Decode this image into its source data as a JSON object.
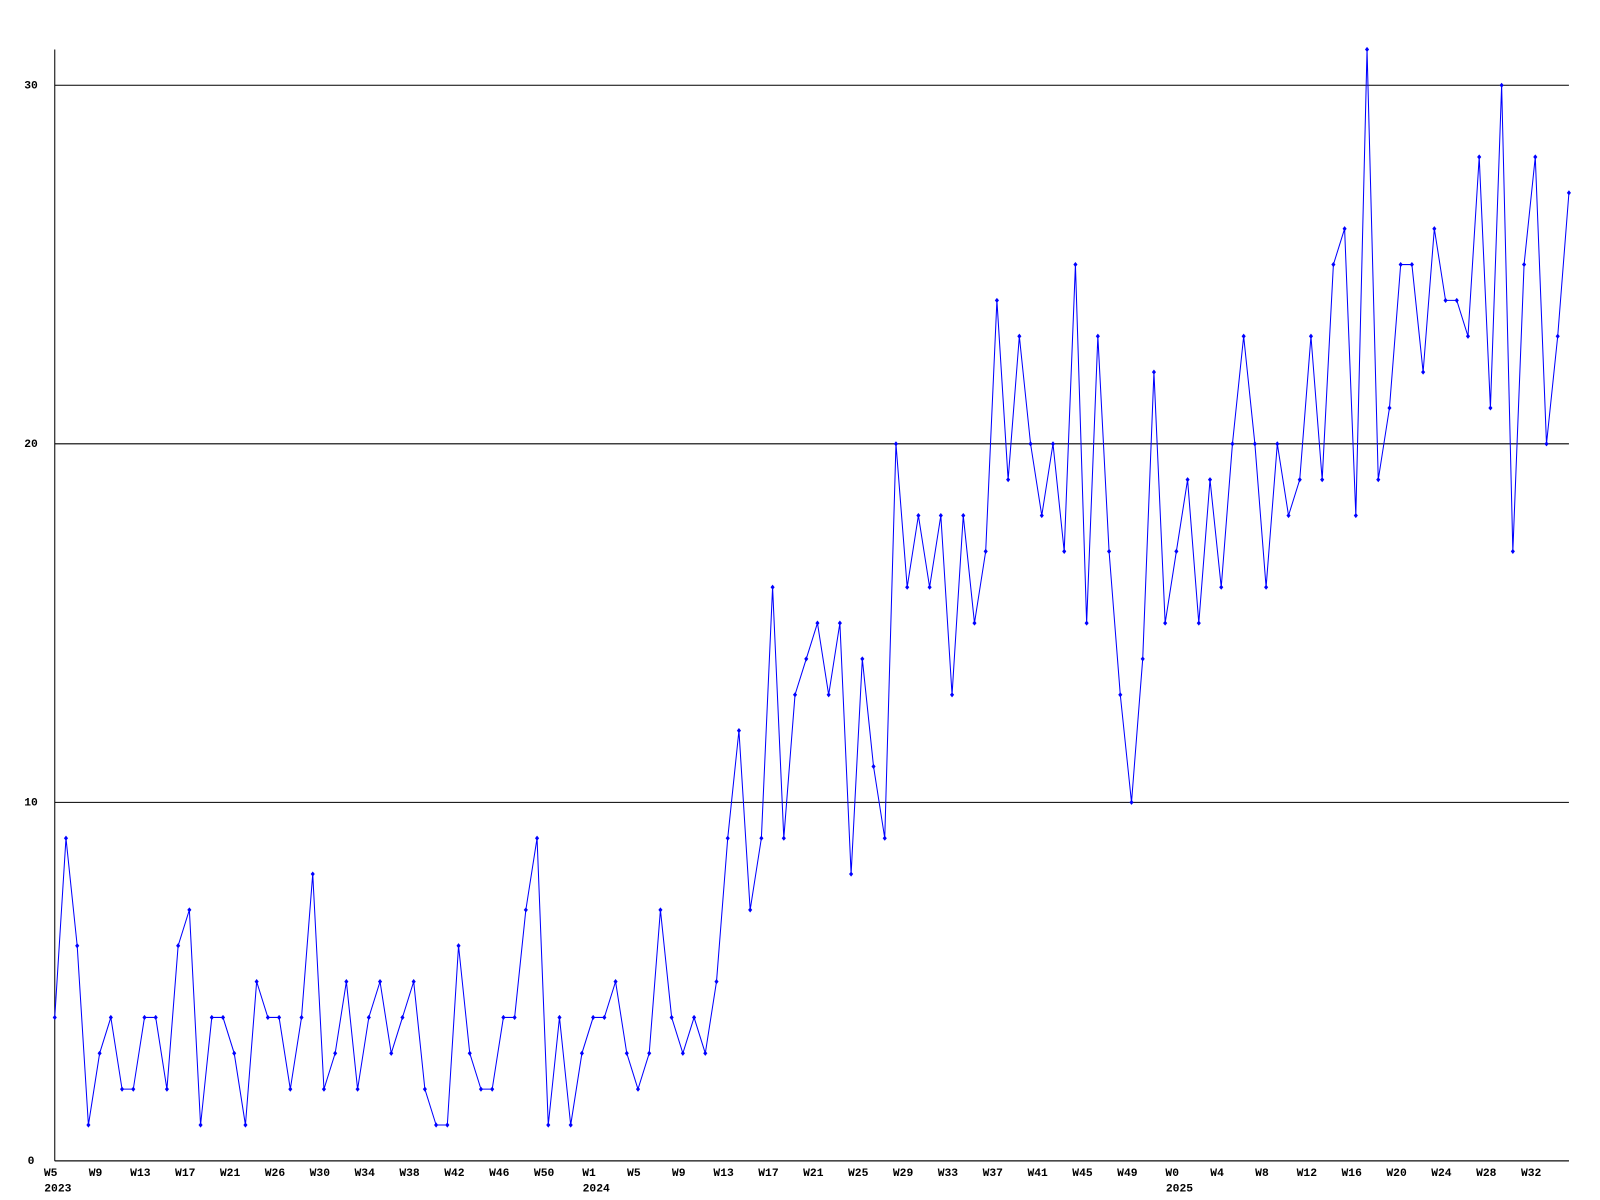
{
  "chart_data": {
    "type": "line",
    "categories": [
      "W5",
      null,
      null,
      null,
      "W9",
      null,
      null,
      null,
      "W13",
      null,
      null,
      null,
      "W17",
      null,
      null,
      null,
      "W21",
      null,
      null,
      null,
      "W26",
      null,
      null,
      null,
      "W30",
      null,
      null,
      null,
      "W34",
      null,
      null,
      null,
      "W38",
      null,
      null,
      null,
      "W42",
      null,
      null,
      null,
      "W46",
      null,
      null,
      null,
      "W50",
      null,
      null,
      null,
      "W1",
      null,
      null,
      null,
      "W5",
      null,
      null,
      null,
      "W9",
      null,
      null,
      null,
      "W13",
      null,
      null,
      null,
      "W17",
      null,
      null,
      null,
      "W21",
      null,
      null,
      null,
      "W25",
      null,
      null,
      null,
      "W29",
      null,
      null,
      null,
      "W33",
      null,
      null,
      null,
      "W37",
      null,
      null,
      null,
      "W41",
      null,
      null,
      null,
      "W45",
      null,
      null,
      null,
      "W49",
      null,
      null,
      null,
      "W0",
      null,
      null,
      null,
      "W4",
      null,
      null,
      null,
      "W8",
      null,
      null,
      null,
      "W12",
      null,
      null,
      null,
      "W16",
      null,
      null,
      null,
      "W20",
      null,
      null,
      null,
      "W24",
      null,
      null,
      null,
      "W28",
      null,
      null,
      null,
      "W32",
      null,
      null,
      null
    ],
    "category_groups": [
      "2023",
      null,
      null,
      null,
      null,
      null,
      null,
      null,
      null,
      null,
      null,
      null,
      null,
      null,
      null,
      null,
      null,
      null,
      null,
      null,
      null,
      null,
      null,
      null,
      null,
      null,
      null,
      null,
      null,
      null,
      null,
      null,
      null,
      null,
      null,
      null,
      null,
      null,
      null,
      null,
      null,
      null,
      null,
      null,
      null,
      null,
      null,
      null,
      "2024",
      null,
      null,
      null,
      null,
      null,
      null,
      null,
      null,
      null,
      null,
      null,
      null,
      null,
      null,
      null,
      null,
      null,
      null,
      null,
      null,
      null,
      null,
      null,
      null,
      null,
      null,
      null,
      null,
      null,
      null,
      null,
      null,
      null,
      null,
      null,
      null,
      null,
      null,
      null,
      null,
      null,
      null,
      null,
      null,
      null,
      null,
      null,
      null,
      null,
      null,
      null,
      "2025",
      null,
      null,
      null,
      null,
      null,
      null,
      null,
      null,
      null,
      null,
      null,
      null,
      null,
      null,
      null,
      null,
      null,
      null,
      null,
      null,
      null,
      null,
      null,
      null,
      null,
      null,
      null,
      null,
      null,
      null,
      null,
      null,
      null,
      null,
      null
    ],
    "series": [
      {
        "color": "#0000ff",
        "values": [
          4,
          9,
          6,
          1,
          3,
          4,
          2,
          2,
          4,
          4,
          2,
          6,
          7,
          1,
          4,
          4,
          3,
          1,
          5,
          4,
          4,
          2,
          4,
          8,
          2,
          3,
          5,
          2,
          4,
          5,
          3,
          4,
          5,
          2,
          1,
          1,
          6,
          3,
          2,
          2,
          4,
          4,
          7,
          9,
          1,
          4,
          1,
          3,
          4,
          4,
          5,
          3,
          2,
          3,
          7,
          4,
          3,
          4,
          3,
          5,
          9,
          12,
          7,
          9,
          16,
          9,
          13,
          14,
          15,
          13,
          15,
          8,
          14,
          11,
          9,
          20,
          16,
          18,
          16,
          18,
          13,
          18,
          15,
          17,
          24,
          19,
          23,
          20,
          18,
          20,
          17,
          25,
          15,
          23,
          17,
          13,
          10,
          14,
          22,
          15,
          17,
          19,
          15,
          19,
          16,
          20,
          23,
          20,
          16,
          20,
          18,
          19,
          23,
          19,
          25,
          26,
          18,
          31,
          19,
          21,
          25,
          25,
          22,
          26,
          24,
          24,
          23,
          28,
          21,
          30,
          17,
          25,
          28,
          20,
          23,
          27
        ]
      }
    ],
    "ylim": [
      0,
      31
    ],
    "yticks": [
      0,
      10,
      20,
      30
    ],
    "grid": true
  }
}
